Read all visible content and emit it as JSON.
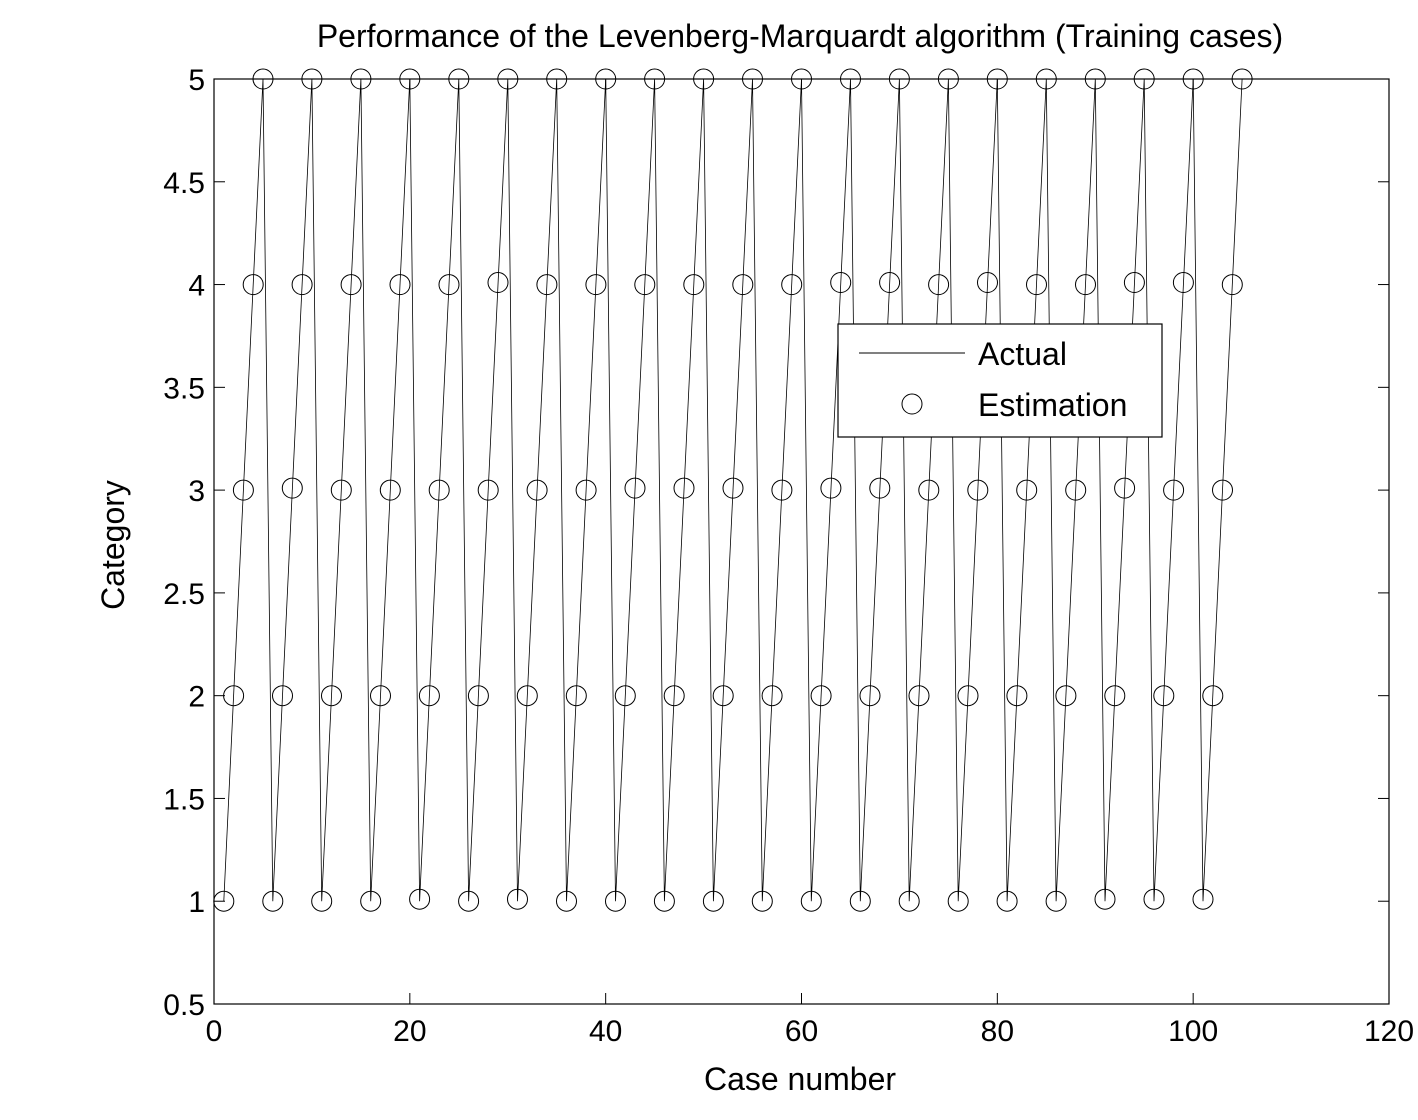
{
  "chart_data": {
    "type": "line",
    "title": "Performance of the Levenberg-Marquardt algorithm (Training cases)",
    "xlabel": "Case number",
    "ylabel": "Category",
    "xlim": [
      0,
      120
    ],
    "ylim": [
      0.5,
      5
    ],
    "xticks": [
      0,
      20,
      40,
      60,
      80,
      100,
      120
    ],
    "xtick_labels": [
      "0",
      "20",
      "40",
      "60",
      "80",
      "100",
      "120"
    ],
    "yticks": [
      0.5,
      1,
      1.5,
      2,
      2.5,
      3,
      3.5,
      4,
      4.5,
      5
    ],
    "ytick_labels": [
      "0.5",
      "1",
      "1.5",
      "2",
      "2.5",
      "3",
      "3.5",
      "4",
      "4.5",
      "5"
    ],
    "grid": false,
    "legend_position": "upper-right-center",
    "x": [
      1,
      2,
      3,
      4,
      5,
      6,
      7,
      8,
      9,
      10,
      11,
      12,
      13,
      14,
      15,
      16,
      17,
      18,
      19,
      20,
      21,
      22,
      23,
      24,
      25,
      26,
      27,
      28,
      29,
      30,
      31,
      32,
      33,
      34,
      35,
      36,
      37,
      38,
      39,
      40,
      41,
      42,
      43,
      44,
      45,
      46,
      47,
      48,
      49,
      50,
      51,
      52,
      53,
      54,
      55,
      56,
      57,
      58,
      59,
      60,
      61,
      62,
      63,
      64,
      65,
      66,
      67,
      68,
      69,
      70,
      71,
      72,
      73,
      74,
      75,
      76,
      77,
      78,
      79,
      80,
      81,
      82,
      83,
      84,
      85,
      86,
      87,
      88,
      89,
      90,
      91,
      92,
      93,
      94,
      95,
      96,
      97,
      98,
      99,
      100,
      101,
      102,
      103,
      104,
      105
    ],
    "series": [
      {
        "name": "Actual",
        "style": "line",
        "color": "#000000",
        "values": [
          1,
          2,
          3,
          4,
          5,
          1,
          2,
          3,
          4,
          5,
          1,
          2,
          3,
          4,
          5,
          1,
          2,
          3,
          4,
          5,
          1,
          2,
          3,
          4,
          5,
          1,
          2,
          3,
          4,
          5,
          1,
          2,
          3,
          4,
          5,
          1,
          2,
          3,
          4,
          5,
          1,
          2,
          3,
          4,
          5,
          1,
          2,
          3,
          4,
          5,
          1,
          2,
          3,
          4,
          5,
          1,
          2,
          3,
          4,
          5,
          1,
          2,
          3,
          4,
          5,
          1,
          2,
          3,
          4,
          5,
          1,
          2,
          3,
          4,
          5,
          1,
          2,
          3,
          4,
          5,
          1,
          2,
          3,
          4,
          5,
          1,
          2,
          3,
          4,
          5,
          1,
          2,
          3,
          4,
          5,
          1,
          2,
          3,
          4,
          5,
          1,
          2,
          3,
          4,
          5
        ]
      },
      {
        "name": "Estimation",
        "style": "markers",
        "marker": "circle",
        "color": "#000000",
        "values": [
          1,
          2,
          3,
          4,
          5,
          1,
          2,
          3.01,
          4,
          5,
          1,
          2,
          3,
          4,
          5,
          1,
          2,
          3,
          4,
          5,
          1.01,
          2,
          3,
          4,
          5,
          1,
          2,
          3,
          4.01,
          5,
          1.01,
          2,
          3,
          4,
          5,
          1,
          2,
          3,
          4,
          5,
          1,
          2,
          3.01,
          4,
          5,
          1,
          2,
          3.01,
          4,
          5,
          1,
          2,
          3.01,
          4,
          5,
          1,
          2,
          3,
          4,
          5,
          1,
          2,
          3.01,
          4.01,
          5,
          1,
          2,
          3.01,
          4.01,
          5,
          1,
          2,
          3,
          4,
          5,
          1,
          2,
          3,
          4.01,
          5,
          1,
          2,
          3,
          4,
          5,
          1,
          2,
          3,
          4,
          5,
          1.01,
          2,
          3.01,
          4.01,
          5,
          1.01,
          2,
          3,
          4.01,
          5,
          1.01,
          2,
          3,
          4,
          5
        ]
      }
    ]
  }
}
